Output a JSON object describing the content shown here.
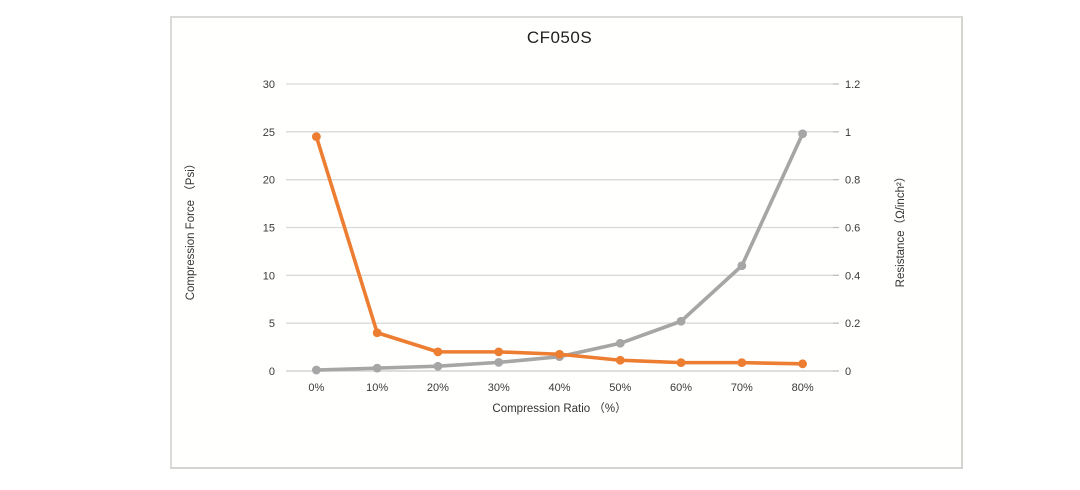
{
  "frame": {
    "background": "#fffffd",
    "border_color": "#d3d3cf"
  },
  "chart_data": {
    "type": "line",
    "title": "CF050S",
    "categories": [
      "0%",
      "10%",
      "20%",
      "30%",
      "40%",
      "50%",
      "60%",
      "70%",
      "80%"
    ],
    "xlabel": "Compression Ratio （%）",
    "grid": true,
    "legend": false,
    "gridline_color": "#d9d9d9",
    "baseline_color": "#c9c9c9",
    "tick_mark_color": "#bfbfbf",
    "tick_text_color": "#3a3a3a",
    "left_axis": {
      "label": "Compression Force （Psi）",
      "min": 0,
      "max": 30,
      "ticks": [
        0,
        5,
        10,
        15,
        20,
        25,
        30
      ]
    },
    "right_axis": {
      "label": "Resistance（Ω/inch²）",
      "min": 0,
      "max": 1.2,
      "ticks": [
        0,
        0.2,
        0.4,
        0.6,
        0.8,
        1,
        1.2
      ]
    },
    "series": [
      {
        "name": "Compression Force (Psi)",
        "axis": "left",
        "color": "#a6a6a6",
        "values": [
          0.1,
          0.3,
          0.5,
          0.9,
          1.5,
          2.9,
          5.2,
          11,
          24.8
        ]
      },
      {
        "name": "Resistance (Ω/inch²)",
        "axis": "right",
        "color": "#ed7d31",
        "values": [
          0.98,
          0.16,
          0.08,
          0.08,
          0.07,
          0.045,
          0.035,
          0.035,
          0.03
        ]
      }
    ]
  }
}
